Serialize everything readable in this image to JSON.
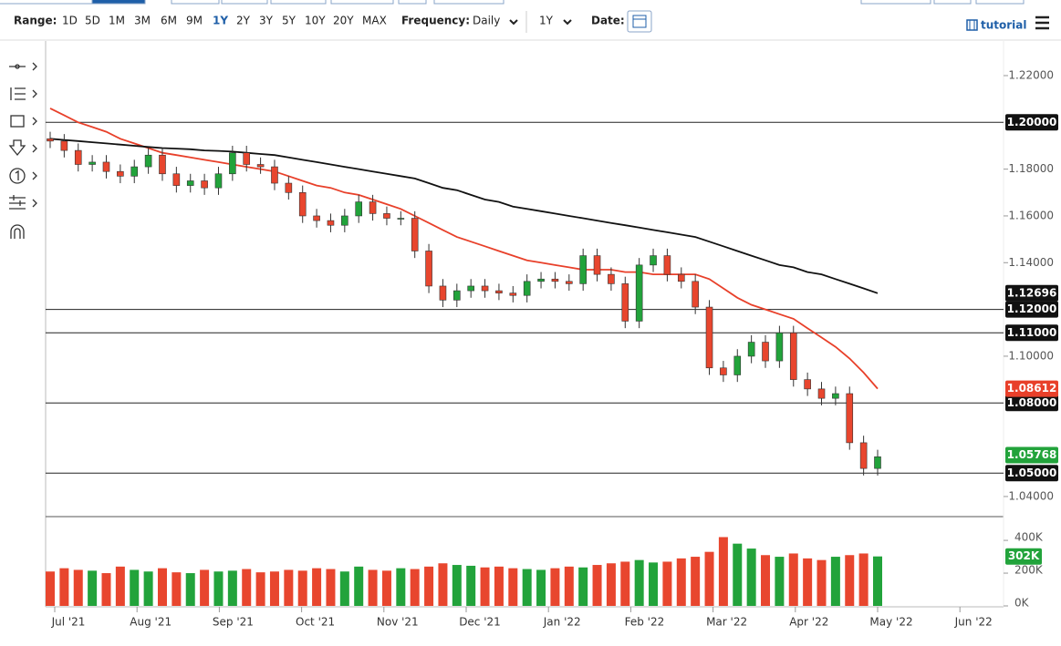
{
  "toolbar": {
    "range_label": "Range:",
    "ranges": [
      "1D",
      "5D",
      "1M",
      "3M",
      "6M",
      "9M",
      "1Y",
      "2Y",
      "3Y",
      "5Y",
      "10Y",
      "20Y",
      "MAX"
    ],
    "active_range": 6,
    "frequency_label": "Frequency:",
    "frequency": "Daily",
    "period": "1Y",
    "date_label": "Date:",
    "tutorial": "tutorial"
  },
  "chart_data": {
    "type": "candlestick",
    "x_labels": [
      "Jul '21",
      "Aug '21",
      "Sep '21",
      "Oct '21",
      "Nov '21",
      "Dec '21",
      "Jan '22",
      "Feb '22",
      "Mar '22",
      "Apr '22",
      "May '22",
      "Jun '22"
    ],
    "open": [
      1.193,
      1.192,
      1.188,
      1.182,
      1.183,
      1.179,
      1.177,
      1.181,
      1.186,
      1.178,
      1.173,
      1.175,
      1.172,
      1.178,
      1.187,
      1.182,
      1.181,
      1.174,
      1.17,
      1.16,
      1.158,
      1.156,
      1.16,
      1.166,
      1.161,
      1.159,
      1.159,
      1.145,
      1.13,
      1.124,
      1.128,
      1.13,
      1.128,
      1.127,
      1.126,
      1.132,
      1.133,
      1.132,
      1.131,
      1.143,
      1.135,
      1.131,
      1.115,
      1.139,
      1.143,
      1.135,
      1.132,
      1.121,
      1.095,
      1.092,
      1.1,
      1.106,
      1.098,
      1.11,
      1.09,
      1.086,
      1.082,
      1.084,
      1.063,
      1.052
    ],
    "high": [
      1.196,
      1.195,
      1.191,
      1.186,
      1.186,
      1.182,
      1.184,
      1.189,
      1.189,
      1.181,
      1.178,
      1.178,
      1.181,
      1.19,
      1.19,
      1.185,
      1.184,
      1.177,
      1.173,
      1.163,
      1.161,
      1.163,
      1.169,
      1.169,
      1.164,
      1.162,
      1.162,
      1.148,
      1.133,
      1.131,
      1.133,
      1.133,
      1.131,
      1.13,
      1.135,
      1.136,
      1.136,
      1.135,
      1.146,
      1.146,
      1.138,
      1.134,
      1.142,
      1.146,
      1.146,
      1.138,
      1.135,
      1.124,
      1.098,
      1.103,
      1.109,
      1.109,
      1.113,
      1.113,
      1.093,
      1.089,
      1.087,
      1.087,
      1.066,
      1.06
    ],
    "low": [
      1.189,
      1.185,
      1.179,
      1.179,
      1.176,
      1.174,
      1.174,
      1.178,
      1.175,
      1.17,
      1.17,
      1.169,
      1.169,
      1.175,
      1.179,
      1.178,
      1.171,
      1.167,
      1.157,
      1.155,
      1.153,
      1.153,
      1.157,
      1.158,
      1.156,
      1.156,
      1.142,
      1.127,
      1.121,
      1.121,
      1.125,
      1.125,
      1.124,
      1.123,
      1.123,
      1.129,
      1.129,
      1.128,
      1.128,
      1.132,
      1.128,
      1.112,
      1.112,
      1.136,
      1.132,
      1.129,
      1.118,
      1.092,
      1.089,
      1.089,
      1.097,
      1.095,
      1.095,
      1.087,
      1.083,
      1.079,
      1.079,
      1.06,
      1.049,
      1.049
    ],
    "close": [
      1.192,
      1.188,
      1.182,
      1.183,
      1.179,
      1.177,
      1.181,
      1.186,
      1.178,
      1.173,
      1.175,
      1.172,
      1.178,
      1.187,
      1.182,
      1.181,
      1.174,
      1.17,
      1.16,
      1.158,
      1.156,
      1.16,
      1.166,
      1.161,
      1.159,
      1.159,
      1.145,
      1.13,
      1.124,
      1.128,
      1.13,
      1.128,
      1.127,
      1.126,
      1.132,
      1.133,
      1.132,
      1.131,
      1.143,
      1.135,
      1.131,
      1.115,
      1.139,
      1.143,
      1.135,
      1.132,
      1.121,
      1.095,
      1.092,
      1.1,
      1.106,
      1.098,
      1.11,
      1.09,
      1.086,
      1.082,
      1.084,
      1.063,
      1.052,
      1.057
    ],
    "volume": [
      210000,
      230000,
      220000,
      215000,
      200000,
      240000,
      220000,
      210000,
      230000,
      205000,
      200000,
      220000,
      210000,
      215000,
      225000,
      205000,
      210000,
      220000,
      215000,
      230000,
      225000,
      210000,
      240000,
      220000,
      215000,
      230000,
      225000,
      240000,
      260000,
      250000,
      245000,
      235000,
      240000,
      230000,
      225000,
      220000,
      230000,
      240000,
      235000,
      250000,
      260000,
      270000,
      280000,
      265000,
      270000,
      290000,
      300000,
      330000,
      420000,
      380000,
      350000,
      310000,
      300000,
      320000,
      290000,
      280000,
      300000,
      310000,
      320000,
      302000
    ],
    "up_color": "#22a33b",
    "down_color": "#e8462e",
    "moving_averages": [
      {
        "color": "#e8402a",
        "values": [
          1.206,
          1.203,
          1.2,
          1.198,
          1.196,
          1.193,
          1.191,
          1.189,
          1.187,
          1.186,
          1.185,
          1.184,
          1.183,
          1.182,
          1.181,
          1.18,
          1.179,
          1.177,
          1.175,
          1.173,
          1.172,
          1.17,
          1.169,
          1.167,
          1.165,
          1.163,
          1.16,
          1.157,
          1.154,
          1.151,
          1.149,
          1.147,
          1.145,
          1.143,
          1.141,
          1.14,
          1.139,
          1.138,
          1.137,
          1.137,
          1.137,
          1.136,
          1.136,
          1.135,
          1.135,
          1.135,
          1.135,
          1.133,
          1.129,
          1.125,
          1.122,
          1.12,
          1.118,
          1.116,
          1.112,
          1.108,
          1.104,
          1.099,
          1.093,
          1.08612
        ]
      },
      {
        "color": "#111111",
        "values": [
          1.193,
          1.1925,
          1.192,
          1.1915,
          1.191,
          1.1905,
          1.19,
          1.1895,
          1.189,
          1.1888,
          1.1885,
          1.188,
          1.1878,
          1.1875,
          1.187,
          1.1865,
          1.186,
          1.185,
          1.184,
          1.183,
          1.182,
          1.181,
          1.18,
          1.179,
          1.178,
          1.177,
          1.176,
          1.174,
          1.172,
          1.171,
          1.169,
          1.167,
          1.166,
          1.164,
          1.163,
          1.162,
          1.161,
          1.16,
          1.159,
          1.158,
          1.157,
          1.156,
          1.155,
          1.154,
          1.153,
          1.152,
          1.151,
          1.149,
          1.147,
          1.145,
          1.143,
          1.141,
          1.139,
          1.138,
          1.136,
          1.135,
          1.133,
          1.131,
          1.129,
          1.12696
        ]
      }
    ],
    "ylim": [
      1.0314,
      1.2348
    ],
    "yticks": [
      {
        "value": 1.22,
        "label": "1.22000"
      },
      {
        "value": 1.18,
        "label": "1.18000"
      },
      {
        "value": 1.16,
        "label": "1.16000"
      },
      {
        "value": 1.14,
        "label": "1.14000"
      },
      {
        "value": 1.1,
        "label": "1.10000"
      },
      {
        "value": 1.04,
        "label": "1.04000"
      }
    ],
    "levels": [
      {
        "value": 1.2,
        "label": "1.20000"
      },
      {
        "value": 1.12,
        "label": "1.12000"
      },
      {
        "value": 1.11,
        "label": "1.11000"
      },
      {
        "value": 1.08,
        "label": "1.08000"
      },
      {
        "value": 1.05,
        "label": "1.05000"
      }
    ],
    "badges": [
      {
        "value": 1.12696,
        "label": "1.12696",
        "color": "#111111"
      },
      {
        "value": 1.08612,
        "label": "1.08612",
        "color": "#e8402a"
      },
      {
        "value": 1.05768,
        "label": "1.05768",
        "color": "#22a33b"
      }
    ],
    "volume_ylim": [
      0,
      545000
    ],
    "volume_yticks": [
      {
        "value": 400000,
        "label": "400K"
      },
      {
        "value": 200000,
        "label": "200K"
      },
      {
        "value": 0,
        "label": "0K"
      }
    ],
    "volume_badge": {
      "value": 302000,
      "label": "302K",
      "color": "#22a33b"
    }
  }
}
